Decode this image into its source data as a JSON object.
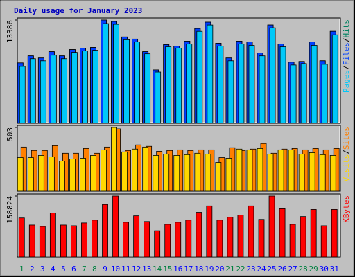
{
  "chart_data": [
    {
      "type": "bar",
      "title": "Daily usage for January 2023",
      "legend_separator": "/",
      "categories": [
        "1",
        "2",
        "3",
        "4",
        "5",
        "6",
        "7",
        "8",
        "9",
        "10",
        "11",
        "12",
        "13",
        "14",
        "15",
        "16",
        "17",
        "18",
        "19",
        "20",
        "21",
        "22",
        "23",
        "24",
        "25",
        "26",
        "27",
        "28",
        "29",
        "30",
        "31"
      ],
      "category_colors": [
        "#008040",
        "#0000ff",
        "#0000ff",
        "#0000ff",
        "#0000ff",
        "#0000ff",
        "#008040",
        "#008040",
        "#0000ff",
        "#0000ff",
        "#0000ff",
        "#0000ff",
        "#0000ff",
        "#008040",
        "#008040",
        "#0000ff",
        "#0000ff",
        "#0000ff",
        "#0000ff",
        "#0000ff",
        "#008040",
        "#008040",
        "#0000ff",
        "#0000ff",
        "#0000ff",
        "#0000ff",
        "#0000ff",
        "#008040",
        "#008040",
        "#0000ff",
        "#0000ff"
      ],
      "ylim": [
        0,
        13386
      ],
      "yticks": [
        13386
      ],
      "series": [
        {
          "name": "Hits",
          "color": "#008060",
          "values": [
            7831,
            8742,
            8469,
            9288,
            8742,
            9561,
            9744,
            9834,
            13386,
            13204,
            11201,
            10927,
            9288,
            6921,
            10199,
            10017,
            10654,
            12293,
            13113,
            10381,
            8469,
            10654,
            10563,
            9106,
            12749,
            10290,
            7922,
            8013,
            10563,
            8104,
            11929
          ]
        },
        {
          "name": "Files",
          "color": "#0040ff",
          "values": [
            7831,
            8742,
            8469,
            9288,
            8742,
            9561,
            9744,
            9834,
            13386,
            13204,
            11201,
            10927,
            9288,
            6921,
            10199,
            10017,
            10654,
            12293,
            13113,
            10381,
            8469,
            10654,
            10563,
            9106,
            12749,
            10290,
            7922,
            8013,
            10563,
            8104,
            11929
          ]
        },
        {
          "name": "Pages",
          "color": "#00c8f8",
          "values": [
            7376,
            8378,
            8104,
            8833,
            8378,
            9197,
            9379,
            9470,
            12931,
            12839,
            10836,
            10563,
            9015,
            6647,
            9926,
            9743,
            10290,
            11929,
            12748,
            10017,
            8104,
            10290,
            10108,
            8742,
            12384,
            9926,
            7558,
            7740,
            10108,
            7649,
            11474
          ]
        }
      ]
    },
    {
      "type": "bar",
      "legend_separator": "/",
      "ylim": [
        0,
        503
      ],
      "yticks": [
        503
      ],
      "series": [
        {
          "name": "Sites",
          "color": "#ff8000",
          "values": [
            348,
            321,
            321,
            359,
            299,
            299,
            337,
            299,
            348,
            492,
            321,
            365,
            354,
            315,
            321,
            326,
            321,
            326,
            326,
            265,
            343,
            321,
            332,
            376,
            299,
            332,
            337,
            326,
            337,
            326,
            337
          ]
        },
        {
          "name": "Visits",
          "color": "#ffd800",
          "values": [
            265,
            265,
            282,
            271,
            238,
            254,
            260,
            282,
            326,
            503,
            310,
            332,
            348,
            282,
            293,
            282,
            288,
            299,
            293,
            227,
            260,
            332,
            326,
            337,
            293,
            326,
            326,
            293,
            304,
            288,
            282
          ]
        }
      ]
    },
    {
      "type": "bar",
      "ylim": [
        0,
        158824
      ],
      "yticks": [
        158824
      ],
      "series": [
        {
          "name": "KBytes",
          "color": "#ff0000",
          "values": [
            101585,
            83115,
            79421,
            114514,
            83115,
            81268,
            88656,
            96044,
            136678,
            158824,
            90503,
            107126,
            92350,
            68339,
            84962,
            90503,
            96044,
            116361,
            132984,
            96044,
            103432,
            108973,
            132984,
            97891,
            158824,
            125596,
            84962,
            105279,
            123749,
            81268,
            123749
          ]
        }
      ]
    }
  ]
}
